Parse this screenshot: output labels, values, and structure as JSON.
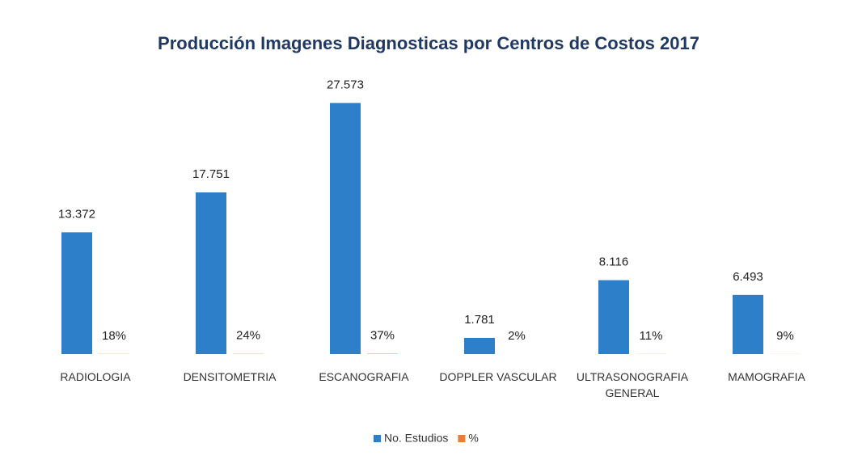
{
  "chart_data": {
    "type": "bar",
    "title": "Producción Imagenes Diagnosticas por Centros de Costos 2017",
    "categories": [
      "RADIOLOGIA",
      "DENSITOMETRIA",
      "ESCANOGRAFIA",
      "DOPPLER VASCULAR",
      "ULTRASONOGRAFIA GENERAL",
      "MAMOGRAFIA"
    ],
    "series": [
      {
        "name": "No. Estudios",
        "color": "#2e7fc9",
        "values": [
          13372,
          17751,
          27573,
          1781,
          8116,
          6493
        ],
        "value_labels": [
          "13.372",
          "17.751",
          "27.573",
          "1.781",
          "8.116",
          "6.493"
        ]
      },
      {
        "name": "%",
        "color": "#ed7d31",
        "values": [
          18,
          24,
          37,
          2,
          11,
          9
        ],
        "value_labels": [
          "18%",
          "24%",
          "37%",
          "2%",
          "11%",
          "9%"
        ]
      }
    ],
    "ylim": [
      0,
      30000
    ]
  }
}
